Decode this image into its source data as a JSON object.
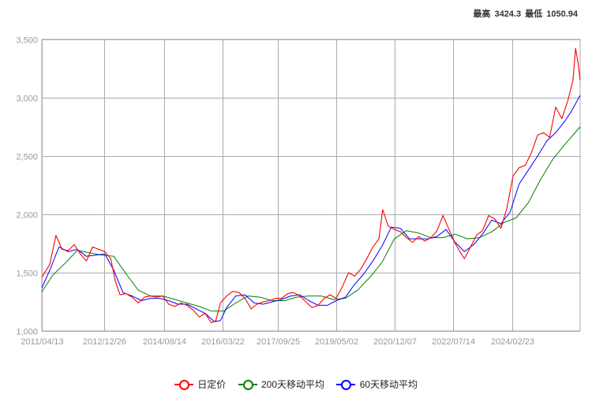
{
  "header": {
    "high_label": "最高",
    "high_value": "3424.3",
    "low_label": "最低",
    "low_value": "1050.94"
  },
  "chart_data": {
    "type": "line",
    "title": "",
    "xlabel": "",
    "ylabel": "",
    "ylim": [
      1000,
      3500
    ],
    "yticks": [
      1000,
      1500,
      2000,
      2500,
      3000,
      3500
    ],
    "ytick_labels": [
      "1,000",
      "1,500",
      "2,000",
      "2,500",
      "3,000",
      "3,500"
    ],
    "xticks": [
      "2011/04/13",
      "2012/12/26",
      "2014/08/14",
      "2016/03/22",
      "2017/09/25",
      "2019/05/02",
      "2020/12/07",
      "2022/07/14",
      "2024/02/23"
    ],
    "x_range": [
      "2011/04/13",
      "2025/12/31"
    ],
    "grid": true,
    "colors": {
      "daily": "#ff0000",
      "ma200": "#008000",
      "ma60": "#0000ff",
      "grid": "#aaaaaa",
      "axis_text": "#999999"
    },
    "series": [
      {
        "name": "日定价",
        "color": "#ff0000",
        "x": [
          "2011/04/13",
          "2011/07/01",
          "2011/09/01",
          "2011/11/01",
          "2012/01/01",
          "2012/03/01",
          "2012/05/01",
          "2012/07/01",
          "2012/09/01",
          "2012/11/01",
          "2013/01/01",
          "2013/03/01",
          "2013/04/15",
          "2013/06/01",
          "2013/08/01",
          "2013/10/01",
          "2013/12/01",
          "2014/02/01",
          "2014/04/01",
          "2014/06/01",
          "2014/08/01",
          "2014/10/01",
          "2014/12/01",
          "2015/02/01",
          "2015/04/01",
          "2015/06/01",
          "2015/08/01",
          "2015/10/01",
          "2015/12/01",
          "2016/01/15",
          "2016/03/01",
          "2016/05/01",
          "2016/07/01",
          "2016/09/01",
          "2016/11/01",
          "2017/01/01",
          "2017/03/01",
          "2017/05/01",
          "2017/07/01",
          "2017/09/01",
          "2017/11/01",
          "2018/01/01",
          "2018/03/01",
          "2018/05/01",
          "2018/07/01",
          "2018/09/01",
          "2018/11/01",
          "2019/01/01",
          "2019/03/01",
          "2019/05/01",
          "2019/07/01",
          "2019/09/01",
          "2019/11/01",
          "2020/01/01",
          "2020/03/01",
          "2020/05/01",
          "2020/07/01",
          "2020/08/07",
          "2020/10/01",
          "2020/12/01",
          "2021/02/01",
          "2021/04/01",
          "2021/06/01",
          "2021/08/01",
          "2021/10/01",
          "2021/12/01",
          "2022/02/01",
          "2022/04/01",
          "2022/06/01",
          "2022/08/01",
          "2022/10/01",
          "2022/11/01",
          "2023/01/01",
          "2023/03/01",
          "2023/05/01",
          "2023/07/01",
          "2023/09/01",
          "2023/11/01",
          "2024/01/01",
          "2024/03/01",
          "2024/05/01",
          "2024/07/01",
          "2024/09/01",
          "2024/11/01",
          "2025/01/01",
          "2025/03/01",
          "2025/05/01",
          "2025/07/01",
          "2025/09/01",
          "2025/10/20",
          "2025/11/15",
          "2025/12/10",
          "2025/12/31"
        ],
        "values": [
          1460,
          1570,
          1820,
          1700,
          1690,
          1740,
          1660,
          1600,
          1720,
          1700,
          1680,
          1620,
          1430,
          1310,
          1320,
          1290,
          1240,
          1290,
          1300,
          1290,
          1300,
          1230,
          1210,
          1240,
          1220,
          1180,
          1120,
          1150,
          1070,
          1090,
          1240,
          1300,
          1340,
          1330,
          1280,
          1190,
          1230,
          1250,
          1260,
          1280,
          1280,
          1320,
          1330,
          1300,
          1250,
          1200,
          1220,
          1280,
          1310,
          1280,
          1380,
          1500,
          1470,
          1530,
          1620,
          1720,
          1790,
          2040,
          1900,
          1870,
          1850,
          1800,
          1760,
          1810,
          1770,
          1800,
          1860,
          1990,
          1870,
          1750,
          1660,
          1620,
          1720,
          1820,
          1860,
          1990,
          1960,
          1880,
          2060,
          2330,
          2400,
          2420,
          2530,
          2680,
          2700,
          2660,
          2920,
          2820,
          2980,
          3150,
          3424,
          3300,
          3150
        ]
      },
      {
        "name": "200天移动平均",
        "color": "#008000",
        "x": [
          "2011/04/13",
          "2011/08/01",
          "2011/12/01",
          "2012/04/01",
          "2012/08/01",
          "2012/12/01",
          "2013/04/01",
          "2013/08/01",
          "2013/12/01",
          "2014/04/01",
          "2014/08/01",
          "2014/12/01",
          "2015/04/01",
          "2015/08/01",
          "2015/12/01",
          "2016/04/01",
          "2016/08/01",
          "2016/12/01",
          "2017/04/01",
          "2017/08/01",
          "2017/12/01",
          "2018/04/01",
          "2018/08/01",
          "2018/12/01",
          "2019/04/01",
          "2019/08/01",
          "2019/12/01",
          "2020/04/01",
          "2020/08/01",
          "2020/12/01",
          "2021/04/01",
          "2021/08/01",
          "2021/12/01",
          "2022/04/01",
          "2022/08/01",
          "2022/12/01",
          "2023/04/01",
          "2023/08/01",
          "2023/12/01",
          "2024/04/01",
          "2024/08/01",
          "2024/12/01",
          "2025/04/01",
          "2025/08/01",
          "2025/12/31"
        ],
        "values": [
          1335,
          1480,
          1580,
          1690,
          1670,
          1650,
          1640,
          1490,
          1350,
          1300,
          1300,
          1270,
          1240,
          1210,
          1170,
          1170,
          1240,
          1300,
          1290,
          1260,
          1260,
          1290,
          1300,
          1300,
          1270,
          1280,
          1350,
          1460,
          1590,
          1790,
          1860,
          1840,
          1800,
          1800,
          1830,
          1790,
          1800,
          1850,
          1930,
          1970,
          2100,
          2300,
          2470,
          2600,
          2750
        ]
      },
      {
        "name": "60天移动平均",
        "color": "#0000ff",
        "x": [
          "2011/04/13",
          "2011/07/01",
          "2011/10/01",
          "2012/01/01",
          "2012/04/01",
          "2012/07/01",
          "2012/10/01",
          "2013/01/01",
          "2013/04/01",
          "2013/07/01",
          "2013/10/01",
          "2014/01/01",
          "2014/04/01",
          "2014/07/01",
          "2014/10/01",
          "2015/01/01",
          "2015/04/01",
          "2015/07/01",
          "2015/10/01",
          "2016/01/01",
          "2016/03/01",
          "2016/05/01",
          "2016/08/01",
          "2016/11/01",
          "2017/02/01",
          "2017/05/01",
          "2017/08/01",
          "2017/11/01",
          "2018/02/01",
          "2018/05/01",
          "2018/08/01",
          "2018/11/01",
          "2019/02/01",
          "2019/05/01",
          "2019/08/01",
          "2019/11/01",
          "2020/02/01",
          "2020/05/01",
          "2020/08/01",
          "2020/11/01",
          "2021/02/01",
          "2021/05/01",
          "2021/08/01",
          "2021/11/01",
          "2022/02/01",
          "2022/05/01",
          "2022/08/01",
          "2022/11/01",
          "2023/02/01",
          "2023/05/01",
          "2023/08/01",
          "2023/11/01",
          "2024/02/01",
          "2024/05/01",
          "2024/08/01",
          "2024/11/01",
          "2025/02/01",
          "2025/05/01",
          "2025/08/01",
          "2025/10/01",
          "2025/12/31"
        ],
        "values": [
          1370,
          1520,
          1720,
          1680,
          1700,
          1640,
          1650,
          1660,
          1520,
          1330,
          1300,
          1260,
          1280,
          1280,
          1260,
          1230,
          1230,
          1190,
          1150,
          1080,
          1090,
          1200,
          1300,
          1310,
          1240,
          1230,
          1250,
          1270,
          1300,
          1310,
          1260,
          1220,
          1220,
          1260,
          1290,
          1400,
          1490,
          1600,
          1730,
          1890,
          1880,
          1790,
          1790,
          1790,
          1810,
          1870,
          1760,
          1680,
          1740,
          1830,
          1950,
          1920,
          2020,
          2260,
          2380,
          2500,
          2630,
          2700,
          2800,
          2880,
          3020
        ]
      }
    ]
  }
}
